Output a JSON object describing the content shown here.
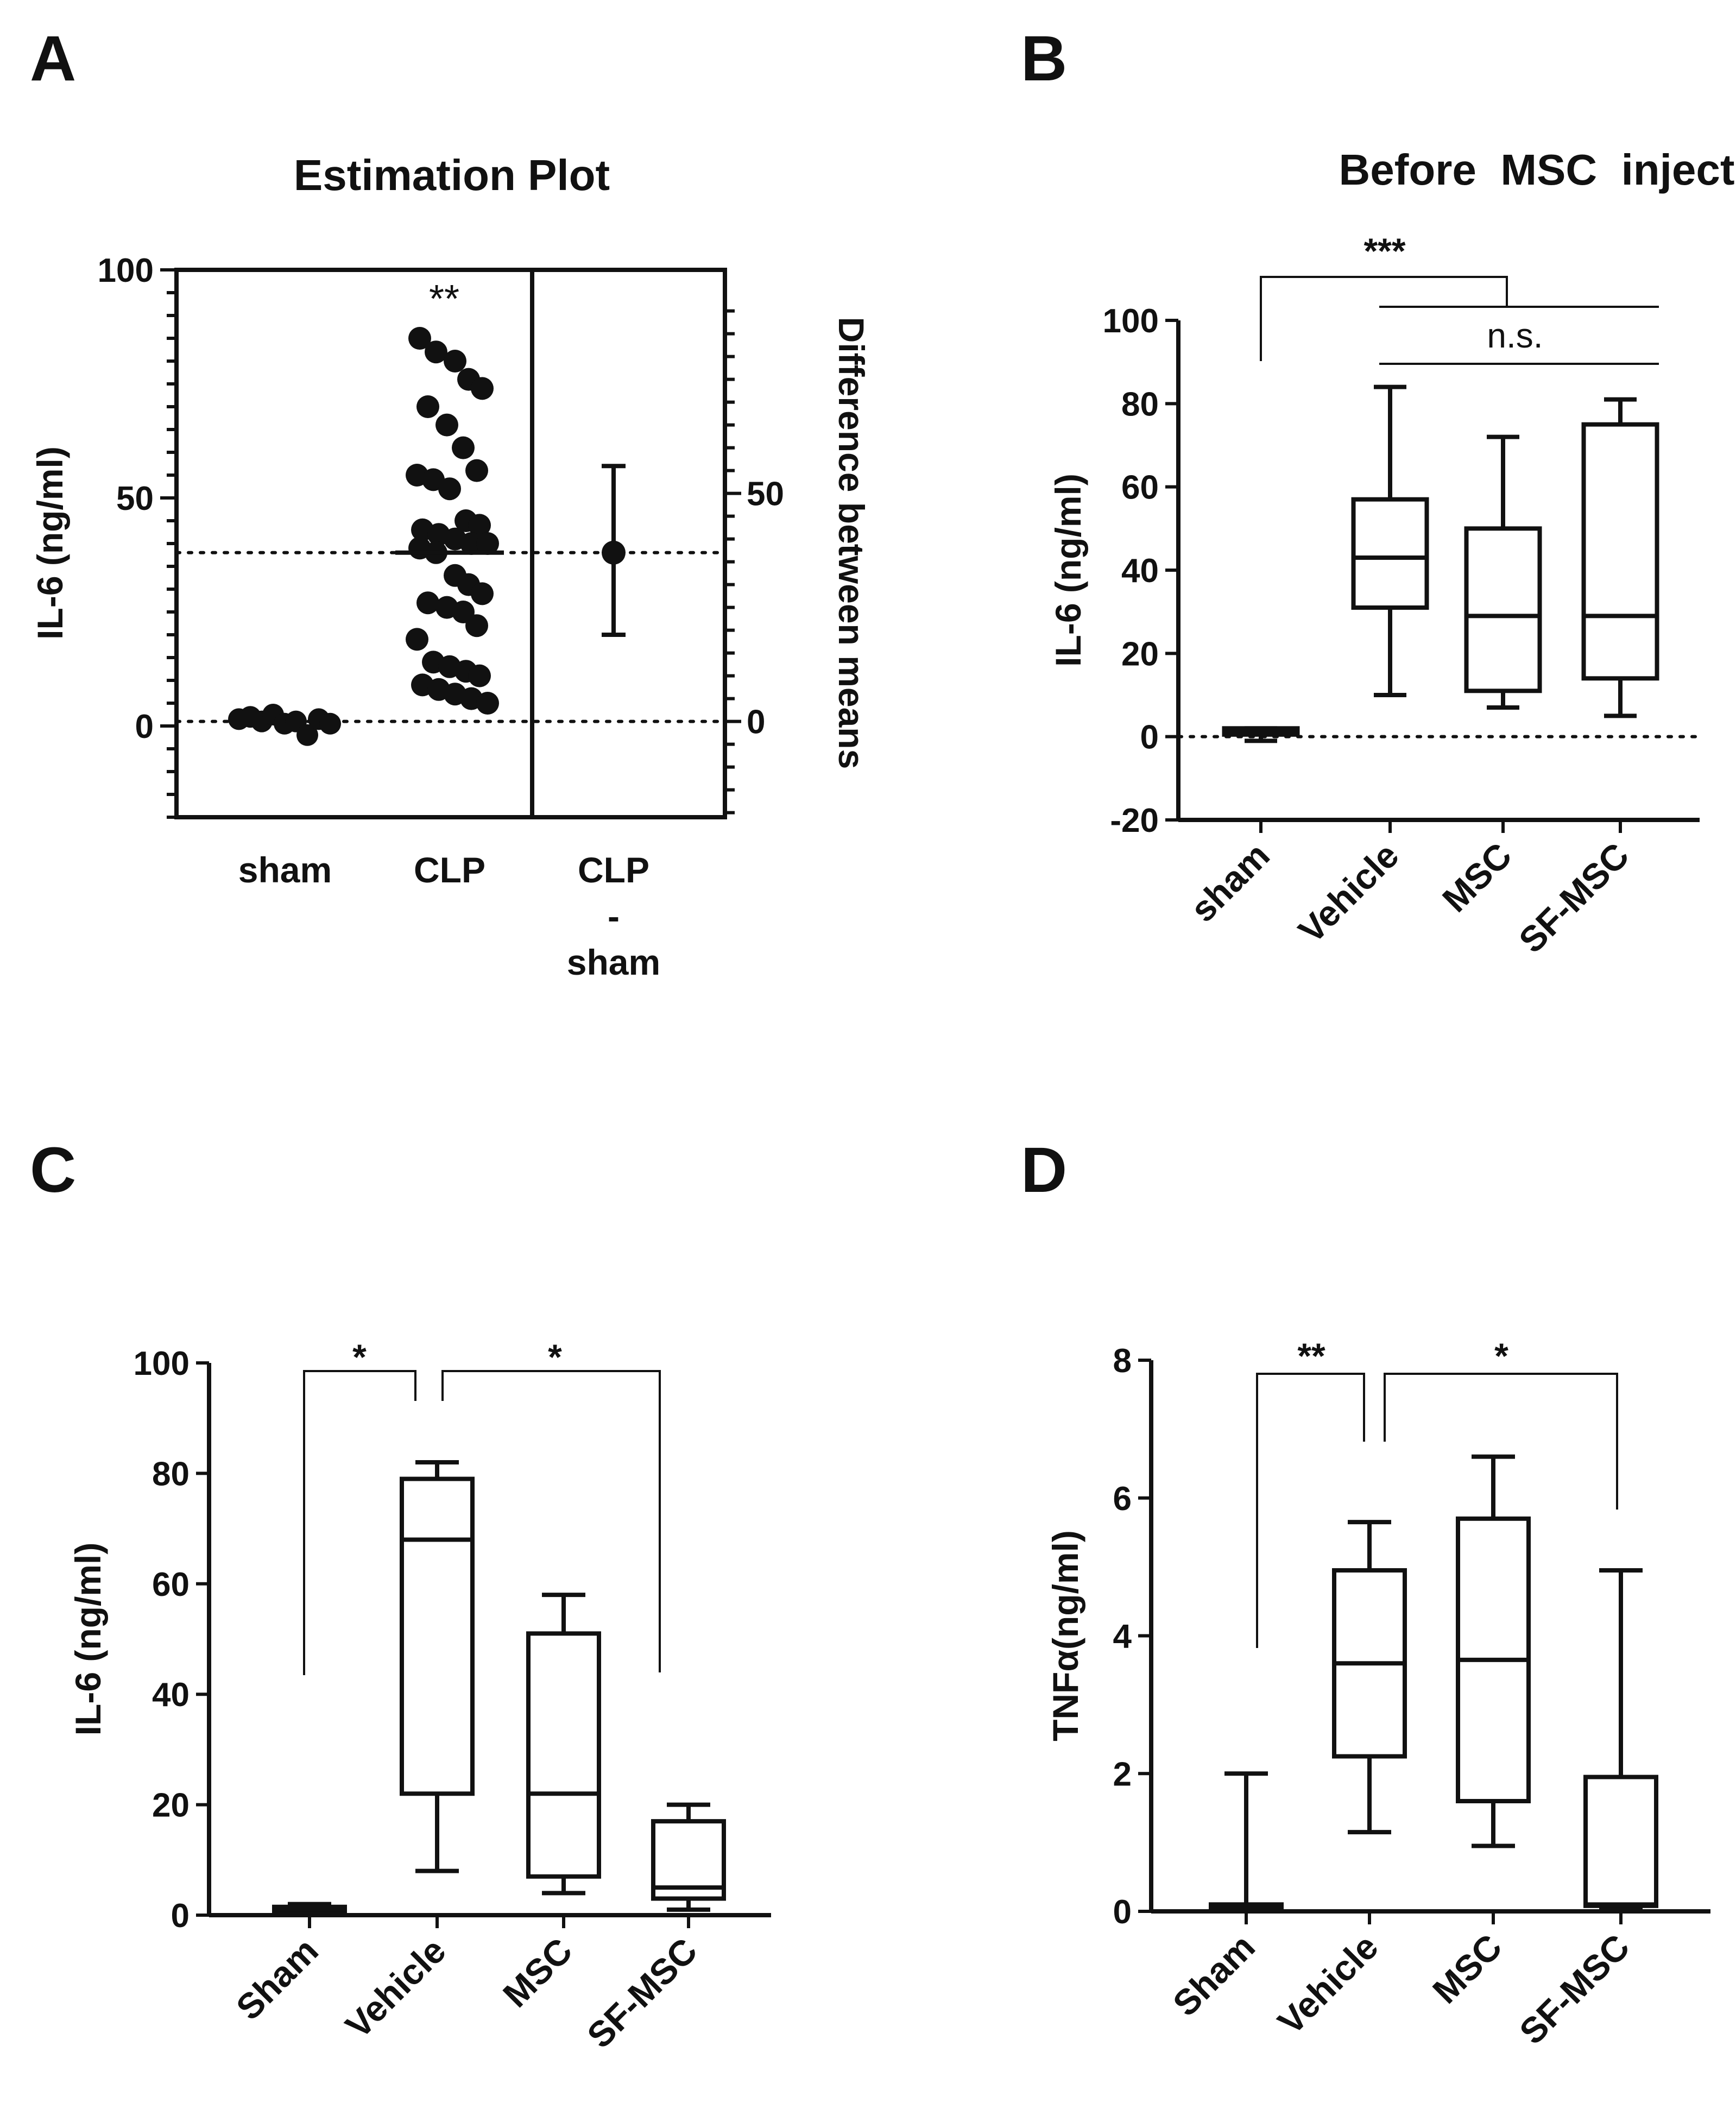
{
  "panels": {
    "A": {
      "letter": "A",
      "title": "Estimation Plot"
    },
    "B": {
      "letter": "B",
      "title": "Before  MSC  injection"
    },
    "C": {
      "letter": "C",
      "title": ""
    },
    "D": {
      "letter": "D",
      "title": ""
    }
  },
  "chart_data": [
    {
      "panel": "A",
      "type": "scatter",
      "title": "Estimation Plot",
      "ylabel": "IL-6 (ng/ml)",
      "y2label": "Difference between means",
      "categories": [
        "sham",
        "CLP",
        "CLP\n-\nsham"
      ],
      "ylim": [
        -20,
        100
      ],
      "yticks": [
        0,
        50,
        100
      ],
      "y2ticks": [
        0,
        50
      ],
      "significance": "**",
      "sham_mean": 1,
      "clp_mean": 38,
      "series": [
        {
          "category": "sham",
          "values": [
            1.5,
            2,
            1,
            2.5,
            0.5,
            1,
            -2,
            1.5,
            0.5
          ]
        },
        {
          "category": "CLP",
          "values": [
            85,
            82,
            80,
            76,
            74,
            70,
            66,
            61,
            56,
            55,
            54,
            52,
            45,
            44,
            43,
            42,
            41,
            40,
            40,
            39,
            38,
            33,
            31,
            29,
            27,
            26,
            25,
            22,
            19,
            14,
            13,
            12,
            11,
            9,
            8,
            7,
            6,
            5
          ]
        }
      ],
      "difference": {
        "mean": 37,
        "lower": 19,
        "upper": 56
      }
    },
    {
      "panel": "B",
      "type": "box",
      "title": "Before  MSC  injection",
      "ylabel": "IL-6 (ng/ml)",
      "categories": [
        "sham",
        "Vehicle",
        "MSC",
        "SF-MSC"
      ],
      "ylim": [
        -20,
        100
      ],
      "yticks": [
        -20,
        0,
        20,
        40,
        60,
        80,
        100
      ],
      "boxes": [
        {
          "min": -1,
          "q1": 0.5,
          "median": 1,
          "q3": 2,
          "max": 2
        },
        {
          "min": 10,
          "q1": 31,
          "median": 43,
          "q3": 57,
          "max": 84
        },
        {
          "min": 7,
          "q1": 11,
          "median": 29,
          "q3": 50,
          "max": 72
        },
        {
          "min": 5,
          "q1": 14,
          "median": 29,
          "q3": 75,
          "max": 81
        }
      ],
      "annotations": [
        {
          "text": "***",
          "from": "sham",
          "to": "Vehicle–SF-MSC"
        },
        {
          "text": "n.s.",
          "from": "Vehicle",
          "to": "SF-MSC"
        }
      ]
    },
    {
      "panel": "C",
      "type": "box",
      "ylabel": "IL-6 (ng/ml)",
      "categories": [
        "Sham",
        "Vehicle",
        "MSC",
        "SF-MSC"
      ],
      "ylim": [
        0,
        100
      ],
      "yticks": [
        0,
        20,
        40,
        60,
        80,
        100
      ],
      "boxes": [
        {
          "min": 0.5,
          "q1": 0.7,
          "median": 1,
          "q3": 1.5,
          "max": 2
        },
        {
          "min": 8,
          "q1": 22,
          "median": 68,
          "q3": 79,
          "max": 82
        },
        {
          "min": 4,
          "q1": 7,
          "median": 22,
          "q3": 51,
          "max": 58
        },
        {
          "min": 1,
          "q1": 3,
          "median": 5,
          "q3": 17,
          "max": 20
        }
      ],
      "annotations": [
        {
          "text": "*",
          "from": "Sham",
          "to": "Vehicle"
        },
        {
          "text": "*",
          "from": "Vehicle",
          "to": "SF-MSC"
        }
      ]
    },
    {
      "panel": "D",
      "type": "box",
      "ylabel": "TNFα(ng/ml)",
      "categories": [
        "Sham",
        "Vehicle",
        "MSC",
        "SF-MSC"
      ],
      "ylim": [
        0,
        8
      ],
      "yticks": [
        0,
        2,
        4,
        6,
        8
      ],
      "boxes": [
        {
          "min": 0,
          "q1": 0.05,
          "median": 0.08,
          "q3": 0.1,
          "max": 2
        },
        {
          "min": 1.15,
          "q1": 2.25,
          "median": 3.6,
          "q3": 4.95,
          "max": 5.65
        },
        {
          "min": 0.95,
          "q1": 1.6,
          "median": 3.65,
          "q3": 5.7,
          "max": 6.6
        },
        {
          "min": 0.05,
          "q1": 0.08,
          "median": 0.1,
          "q3": 1.95,
          "max": 4.95
        }
      ],
      "annotations": [
        {
          "text": "**",
          "from": "Sham",
          "to": "Vehicle"
        },
        {
          "text": "*",
          "from": "Vehicle",
          "to": "SF-MSC"
        }
      ]
    }
  ]
}
